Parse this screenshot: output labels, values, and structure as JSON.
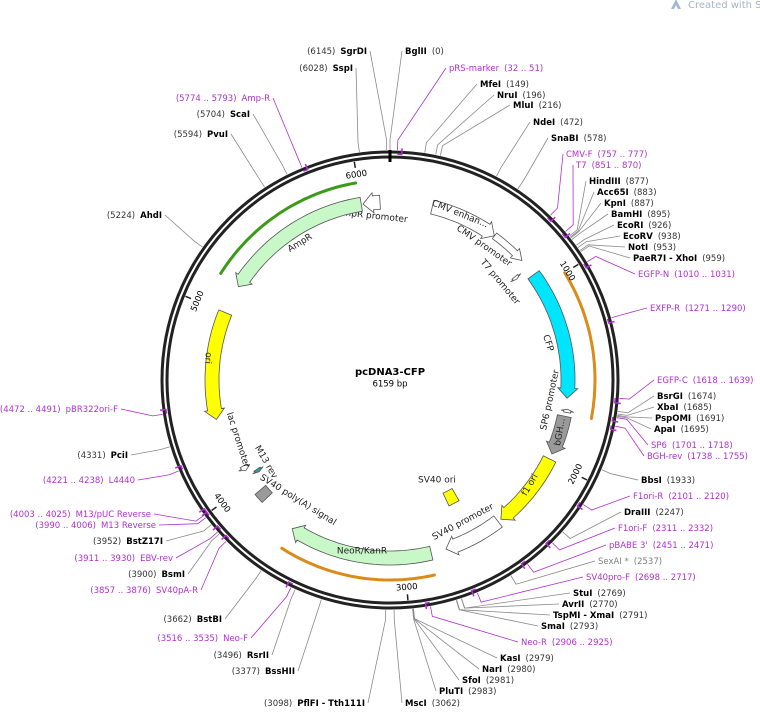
{
  "watermark": "Created with SnapGene®",
  "map": {
    "title": "pcDNA3-CFP",
    "length": "6159 bp"
  },
  "ticks": [
    1000,
    2000,
    3000,
    4000,
    5000,
    6000
  ],
  "features": [
    {
      "name": "AmpR promoter",
      "color": "#ffffff"
    },
    {
      "name": "AmpR",
      "color": "#c8f7c8"
    },
    {
      "name": "ori",
      "color": "#ffff00"
    },
    {
      "name": "CMV enhan...",
      "color": "#ffffff"
    },
    {
      "name": "CMV promoter",
      "color": "#ffffff"
    },
    {
      "name": "T7 promoter",
      "color": "#ffffff"
    },
    {
      "name": "CFP",
      "color": "#00e5ff"
    },
    {
      "name": "SP6 promoter",
      "color": "#ffffff"
    },
    {
      "name": "bGH...",
      "color": "#9a9a9a"
    },
    {
      "name": "f1 ori",
      "color": "#ffff00"
    },
    {
      "name": "SV40 promoter",
      "color": "#ffffff"
    },
    {
      "name": "SV40 ori",
      "color": "#ffff00"
    },
    {
      "name": "NeoR/KanR",
      "color": "#c8f7c8"
    },
    {
      "name": "SV40 poly(A) signal",
      "color": "#9a9a9a"
    },
    {
      "name": "lac promoter",
      "color": "#ffffff"
    },
    {
      "name": "M13 rev",
      "color": "#2aa0a0"
    }
  ],
  "sites": [
    {
      "name": "SgrDI",
      "position": "(6145)",
      "color": "#000000"
    },
    {
      "name": "SspI",
      "position": "(6028)",
      "color": "#000000"
    },
    {
      "name": "Amp-R",
      "position": "(5774 .. 5793)",
      "color": "#b030d0"
    },
    {
      "name": "ScaI",
      "position": "(5704)",
      "color": "#000000"
    },
    {
      "name": "PvuI",
      "position": "(5594)",
      "color": "#000000"
    },
    {
      "name": "AhdI",
      "position": "(5224)",
      "color": "#000000"
    },
    {
      "name": "pBR322ori-F",
      "position": "(4472 .. 4491)",
      "color": "#b030d0"
    },
    {
      "name": "PciI",
      "position": "(4331)",
      "color": "#000000"
    },
    {
      "name": "L4440",
      "position": "(4221 .. 4238)",
      "color": "#b030d0"
    },
    {
      "name": "M13/pUC Reverse",
      "position": "(4003 .. 4025)",
      "color": "#b030d0"
    },
    {
      "name": "M13 Reverse",
      "position": "(3990 .. 4006)",
      "color": "#b030d0"
    },
    {
      "name": "BstZ17I",
      "position": "(3952)",
      "color": "#000000"
    },
    {
      "name": "EBV-rev",
      "position": "(3911 .. 3930)",
      "color": "#b030d0"
    },
    {
      "name": "BsmI",
      "position": "(3900)",
      "color": "#000000"
    },
    {
      "name": "SV40pA-R",
      "position": "(3857 .. 3876)",
      "color": "#b030d0"
    },
    {
      "name": "BstBI",
      "position": "(3662)",
      "color": "#000000"
    },
    {
      "name": "Neo-F",
      "position": "(3516 .. 3535)",
      "color": "#b030d0"
    },
    {
      "name": "RsrII",
      "position": "(3496)",
      "color": "#000000"
    },
    {
      "name": "BssHII",
      "position": "(3377)",
      "color": "#000000"
    },
    {
      "name": "PflFI - Tth111I",
      "position": "(3098)",
      "color": "#000000"
    },
    {
      "name": "BglII",
      "position": "(0)",
      "color": "#000000"
    },
    {
      "name": "pRS-marker",
      "position": "(32 .. 51)",
      "color": "#b030d0"
    },
    {
      "name": "MfeI",
      "position": "(149)",
      "color": "#000000"
    },
    {
      "name": "NruI",
      "position": "(196)",
      "color": "#000000"
    },
    {
      "name": "MluI",
      "position": "(216)",
      "color": "#000000"
    },
    {
      "name": "NdeI",
      "position": "(472)",
      "color": "#000000"
    },
    {
      "name": "SnaBI",
      "position": "(578)",
      "color": "#000000"
    },
    {
      "name": "CMV-F",
      "position": "(757 .. 777)",
      "color": "#b030d0"
    },
    {
      "name": "T7",
      "position": "(851 .. 870)",
      "color": "#b030d0"
    },
    {
      "name": "HindIII",
      "position": "(877)",
      "color": "#000000"
    },
    {
      "name": "Acc65I",
      "position": "(883)",
      "color": "#000000"
    },
    {
      "name": "KpnI",
      "position": "(887)",
      "color": "#000000"
    },
    {
      "name": "BamHI",
      "position": "(895)",
      "color": "#000000"
    },
    {
      "name": "EcoRI",
      "position": "(926)",
      "color": "#000000"
    },
    {
      "name": "EcoRV",
      "position": "(938)",
      "color": "#000000"
    },
    {
      "name": "NotI",
      "position": "(953)",
      "color": "#000000"
    },
    {
      "name": "PaeR7I - XhoI",
      "position": "(959)",
      "color": "#000000"
    },
    {
      "name": "EGFP-N",
      "position": "(1010 .. 1031)",
      "color": "#b030d0"
    },
    {
      "name": "EXFP-R",
      "position": "(1271 .. 1290)",
      "color": "#b030d0"
    },
    {
      "name": "EGFP-C",
      "position": "(1618 .. 1639)",
      "color": "#b030d0"
    },
    {
      "name": "BsrGI",
      "position": "(1674)",
      "color": "#000000"
    },
    {
      "name": "XbaI",
      "position": "(1685)",
      "color": "#000000"
    },
    {
      "name": "PspOMI",
      "position": "(1691)",
      "color": "#000000"
    },
    {
      "name": "ApaI",
      "position": "(1695)",
      "color": "#000000"
    },
    {
      "name": "SP6",
      "position": "(1701 .. 1718)",
      "color": "#b030d0"
    },
    {
      "name": "BGH-rev",
      "position": "(1738 .. 1755)",
      "color": "#b030d0"
    },
    {
      "name": "BbsI",
      "position": "(1933)",
      "color": "#000000"
    },
    {
      "name": "F1ori-R",
      "position": "(2101 .. 2120)",
      "color": "#b030d0"
    },
    {
      "name": "DraIII",
      "position": "(2247)",
      "color": "#000000"
    },
    {
      "name": "F1ori-F",
      "position": "(2311 .. 2332)",
      "color": "#b030d0"
    },
    {
      "name": "pBABE 3'",
      "position": "(2451 .. 2471)",
      "color": "#b030d0"
    },
    {
      "name": "SexAI *",
      "position": "(2537)",
      "color": "#808080"
    },
    {
      "name": "SV40pro-F",
      "position": "(2698 .. 2717)",
      "color": "#b030d0"
    },
    {
      "name": "StuI",
      "position": "(2769)",
      "color": "#000000"
    },
    {
      "name": "AvrII",
      "position": "(2770)",
      "color": "#000000"
    },
    {
      "name": "TspMI - XmaI",
      "position": "(2791)",
      "color": "#000000"
    },
    {
      "name": "SmaI",
      "position": "(2793)",
      "color": "#000000"
    },
    {
      "name": "Neo-R",
      "position": "(2906 .. 2925)",
      "color": "#b030d0"
    },
    {
      "name": "KasI",
      "position": "(2979)",
      "color": "#000000"
    },
    {
      "name": "NarI",
      "position": "(2980)",
      "color": "#000000"
    },
    {
      "name": "SfoI",
      "position": "(2981)",
      "color": "#000000"
    },
    {
      "name": "PluTI",
      "position": "(2983)",
      "color": "#000000"
    },
    {
      "name": "MscI",
      "position": "(3062)",
      "color": "#000000"
    }
  ]
}
